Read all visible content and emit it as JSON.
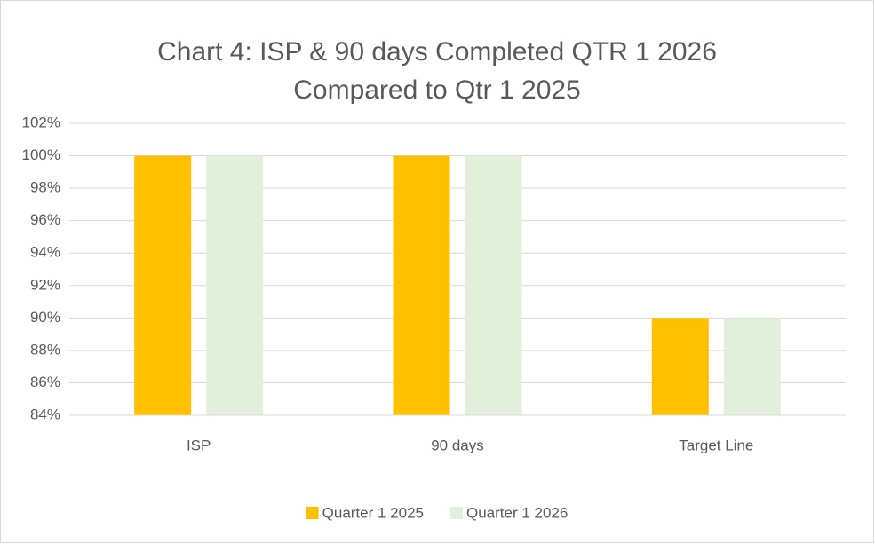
{
  "chart_data": {
    "type": "bar",
    "title": [
      "Chart 4: ISP & 90 days Completed QTR 1 2026",
      "Compared to Qtr 1 2025"
    ],
    "categories": [
      "ISP",
      "90 days",
      "Target Line"
    ],
    "series": [
      {
        "name": "Quarter 1 2025",
        "color": "#FFC000",
        "values": [
          100,
          100,
          90
        ]
      },
      {
        "name": "Quarter 1 2026",
        "color": "#E2EFDA",
        "values": [
          100,
          100,
          90
        ]
      }
    ],
    "ylim": [
      84,
      102
    ],
    "yticks": [
      {
        "value": 84,
        "label": "84%"
      },
      {
        "value": 86,
        "label": "86%"
      },
      {
        "value": 88,
        "label": "88%"
      },
      {
        "value": 90,
        "label": "90%"
      },
      {
        "value": 92,
        "label": "92%"
      },
      {
        "value": 94,
        "label": "94%"
      },
      {
        "value": 96,
        "label": "96%"
      },
      {
        "value": 98,
        "label": "98%"
      },
      {
        "value": 100,
        "label": "100%"
      },
      {
        "value": 102,
        "label": "102%"
      }
    ],
    "grid": true,
    "legend": "bottom"
  }
}
